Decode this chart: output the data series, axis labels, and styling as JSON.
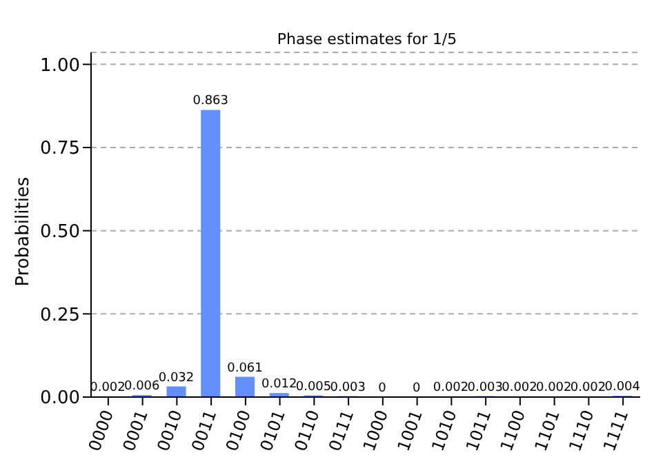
{
  "chart_data": {
    "type": "bar",
    "title": "Phase estimates for 1/5",
    "ylabel": "Probabilities",
    "categories": [
      "0000",
      "0001",
      "0010",
      "0011",
      "0100",
      "0101",
      "0110",
      "0111",
      "1000",
      "1001",
      "1010",
      "1011",
      "1100",
      "1101",
      "1110",
      "1111"
    ],
    "values": [
      0.002,
      0.006,
      0.032,
      0.863,
      0.061,
      0.012,
      0.005,
      0.003,
      0,
      0,
      0.002,
      0.003,
      0.002,
      0.002,
      0.002,
      0.004
    ],
    "color": "#648fff",
    "ylim": [
      0,
      1.036
    ],
    "yticks": [
      {
        "value": 0,
        "label": "0.00"
      },
      0.25,
      {
        "value": 0.5,
        "label": "0.50"
      },
      0.75,
      {
        "value": 1,
        "label": "1.00"
      }
    ],
    "grid": "y",
    "data_labels": true
  }
}
